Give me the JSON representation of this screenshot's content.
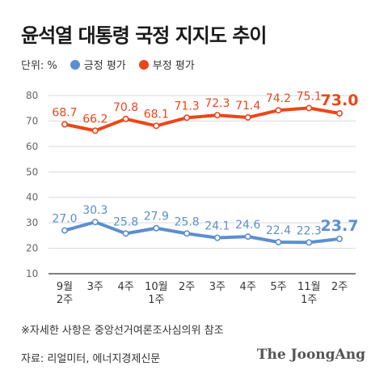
{
  "title": "윤석열 대통령 국정 지지도 추이",
  "unit_label": "단위: %",
  "note": "※자세한 사항은 중앙선거여론조사심의위 참조",
  "source": "자료: 리얼미터, 에너지경제신문",
  "brand": "The JoongAng",
  "colors": {
    "positive": "#5b8fd0",
    "negative": "#ec4619",
    "grid": "#d9d9d9",
    "axis": "#333333"
  },
  "chart_data": {
    "type": "line",
    "categories": [
      "9월\n2주",
      "3주",
      "4주",
      "10월\n1주",
      "2주",
      "3주",
      "4주",
      "5주",
      "11월\n1주",
      "2주"
    ],
    "ylim": [
      10,
      80
    ],
    "yticks": [
      10,
      20,
      30,
      40,
      50,
      60,
      70,
      80
    ],
    "grid": true,
    "legend": "top-left",
    "series": [
      {
        "name": "긍정 평가",
        "color": "#5b8fd0",
        "values": [
          27.0,
          30.3,
          25.8,
          27.9,
          25.8,
          24.1,
          24.6,
          22.4,
          22.3,
          23.7
        ],
        "labels": [
          "27.0",
          "30.3",
          "25.8",
          "27.9",
          "25.8",
          "24.1",
          "24.6",
          "22.4",
          "22.3",
          "23.7"
        ]
      },
      {
        "name": "부정 평가",
        "color": "#ec4619",
        "values": [
          68.7,
          66.2,
          70.8,
          68.1,
          71.3,
          72.3,
          71.4,
          74.2,
          75.1,
          73.0
        ],
        "labels": [
          "68.7",
          "66.2",
          "70.8",
          "68.1",
          "71.3",
          "72.3",
          "71.4",
          "74.2",
          "75.1",
          "73.0"
        ]
      }
    ]
  }
}
